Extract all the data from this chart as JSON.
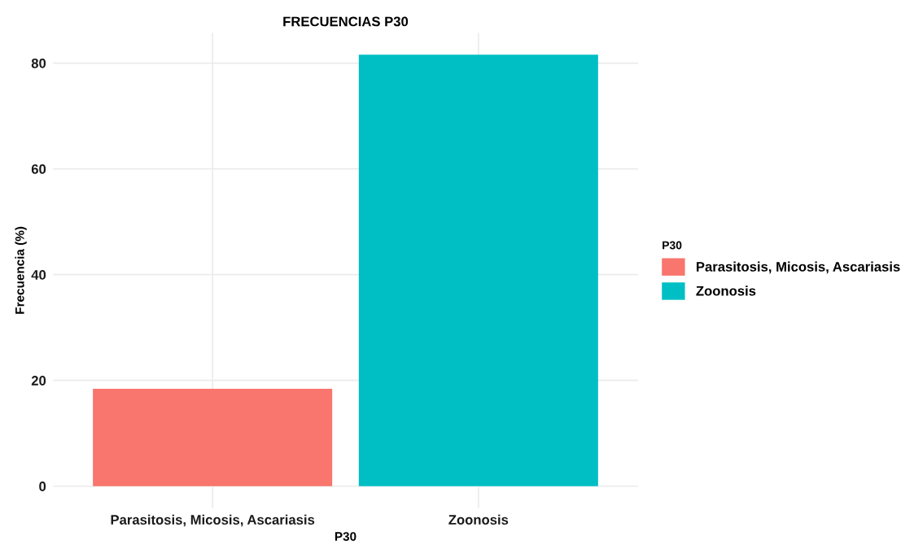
{
  "chart_data": {
    "type": "bar",
    "title": "FRECUENCIAS P30",
    "xlabel": "P30",
    "ylabel": "Frecuencia (%)",
    "legend_title": "P30",
    "categories": [
      "Parasitosis, Micosis, Ascariasis",
      "Zoonosis"
    ],
    "series": [
      {
        "name": "Parasitosis, Micosis, Ascariasis",
        "color": "#f8766d",
        "values": [
          18.4,
          null
        ]
      },
      {
        "name": "Zoonosis",
        "color": "#00bfc4",
        "values": [
          null,
          81.6
        ]
      }
    ],
    "ylim": [
      -4.1,
      85.7
    ],
    "yticks": [
      0,
      20,
      40,
      60,
      80
    ],
    "grid": true,
    "legend": "right"
  }
}
